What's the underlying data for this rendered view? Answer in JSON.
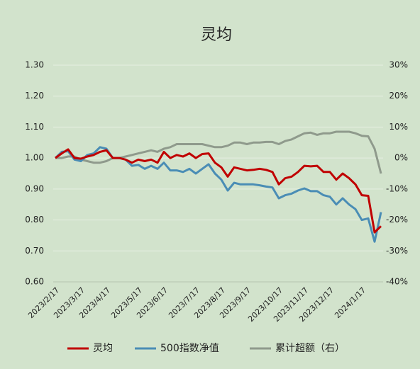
{
  "chart_data": {
    "type": "line",
    "title": "灵均",
    "categories": [
      "2023/2/17",
      null,
      null,
      null,
      "2023/3/17",
      null,
      null,
      null,
      "2023/4/17",
      null,
      null,
      null,
      null,
      "2023/5/17",
      null,
      null,
      null,
      "2023/6/17",
      null,
      null,
      null,
      null,
      "2023/7/17",
      null,
      null,
      null,
      "2023/8/17",
      null,
      null,
      null,
      "2023/9/17",
      null,
      null,
      null,
      null,
      "2023/10/17",
      null,
      null,
      null,
      "2023/11/17",
      null,
      null,
      null,
      "2023/12/17",
      null,
      null,
      null,
      null,
      "2024/1/17",
      null,
      null,
      null
    ],
    "series": [
      {
        "name": "灵均",
        "color": "#c00000",
        "values": [
          1.0,
          1.015,
          1.028,
          1.0,
          0.998,
          1.005,
          1.01,
          1.02,
          1.025,
          1.0,
          1.0,
          0.995,
          0.985,
          0.995,
          0.99,
          0.995,
          0.985,
          1.02,
          1.0,
          1.01,
          1.005,
          1.015,
          1.0,
          1.013,
          1.015,
          0.985,
          0.97,
          0.94,
          0.97,
          0.965,
          0.96,
          0.962,
          0.965,
          0.962,
          0.955,
          0.915,
          0.935,
          0.94,
          0.955,
          0.975,
          0.973,
          0.975,
          0.955,
          0.955,
          0.93,
          0.95,
          0.935,
          0.915,
          0.88,
          0.878,
          0.76,
          0.78
        ]
      },
      {
        "name": "500指数净值",
        "color": "#4a8db5",
        "values": [
          1.0,
          1.02,
          1.022,
          0.995,
          0.99,
          1.01,
          1.015,
          1.035,
          1.03,
          1.0,
          1.0,
          0.995,
          0.975,
          0.978,
          0.965,
          0.975,
          0.965,
          0.985,
          0.96,
          0.96,
          0.955,
          0.965,
          0.95,
          0.965,
          0.98,
          0.95,
          0.93,
          0.895,
          0.92,
          0.915,
          0.915,
          0.915,
          0.912,
          0.908,
          0.905,
          0.87,
          0.88,
          0.885,
          0.895,
          0.902,
          0.893,
          0.893,
          0.88,
          0.875,
          0.85,
          0.87,
          0.85,
          0.835,
          0.8,
          0.805,
          0.73,
          0.825
        ]
      },
      {
        "name": "累计超额（右）",
        "color": "#8f9a8c",
        "axis": "y2",
        "values": [
          0,
          0,
          0.5,
          0.5,
          -0.5,
          -1,
          -1.5,
          -1.5,
          -1,
          0,
          0,
          0.5,
          1,
          1.5,
          2,
          2.5,
          2,
          3,
          3.5,
          4.5,
          4.5,
          4.5,
          4.5,
          4.5,
          4,
          3.5,
          3.5,
          4,
          5,
          5,
          4.5,
          5,
          5,
          5.2,
          5.2,
          4.5,
          5.5,
          6,
          7,
          8,
          8.2,
          7.5,
          8,
          8,
          8.5,
          8.5,
          8.5,
          8,
          7.2,
          7,
          3,
          -5
        ]
      }
    ],
    "ylim": [
      0.6,
      1.3
    ],
    "yticks": [
      {
        "value": 0.6,
        "label": "0.60"
      },
      {
        "value": 0.7,
        "label": "0.70"
      },
      {
        "value": 0.8,
        "label": "0.80"
      },
      {
        "value": 0.9,
        "label": "0.90"
      },
      {
        "value": 1.0,
        "label": "1.00"
      },
      {
        "value": 1.1,
        "label": "1.10"
      },
      {
        "value": 1.2,
        "label": "1.20"
      },
      {
        "value": 1.3,
        "label": "1.30"
      }
    ],
    "y2lim": [
      -40,
      30
    ],
    "y2ticks": [
      {
        "value": -40,
        "label": "-40%"
      },
      {
        "value": -30,
        "label": "-30%"
      },
      {
        "value": -20,
        "label": "-20%"
      },
      {
        "value": -10,
        "label": "-10%"
      },
      {
        "value": 0,
        "label": "0%"
      },
      {
        "value": 10,
        "label": "10%"
      },
      {
        "value": 20,
        "label": "20%"
      },
      {
        "value": 30,
        "label": "30%"
      }
    ],
    "grid": true,
    "legend": "bottom"
  }
}
